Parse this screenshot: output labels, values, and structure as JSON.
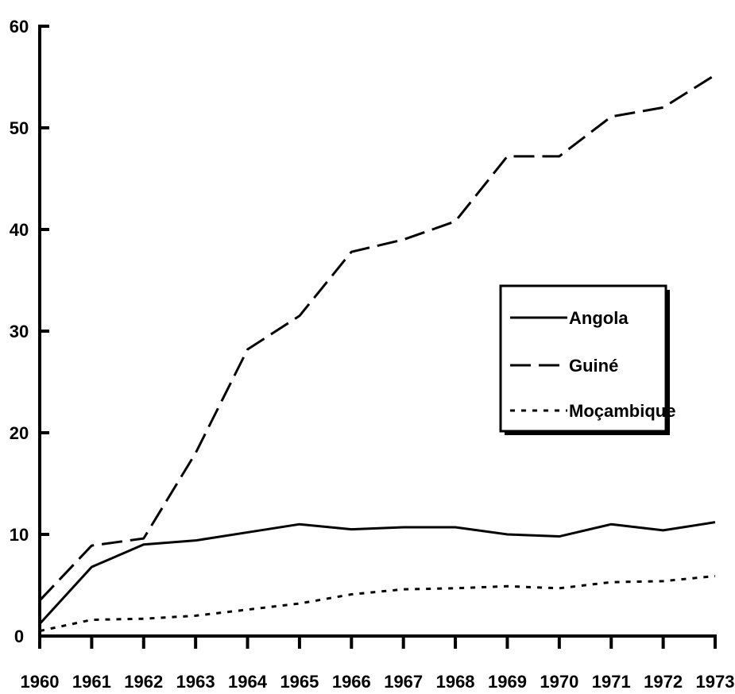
{
  "chart_data": {
    "type": "line",
    "title": "",
    "xlabel": "",
    "ylabel": "",
    "x": [
      1960,
      1961,
      1962,
      1963,
      1964,
      1965,
      1966,
      1967,
      1968,
      1969,
      1970,
      1971,
      1972,
      1973
    ],
    "x_tick_labels": [
      "1960",
      "1961",
      "1962",
      "1963",
      "1964",
      "1965",
      "1966",
      "1967",
      "1968",
      "1969",
      "1970",
      "1971",
      "1972",
      "1973"
    ],
    "ylim": [
      0,
      60
    ],
    "y_ticks": [
      0,
      10,
      20,
      30,
      40,
      50,
      60
    ],
    "y_tick_labels": [
      "0",
      "10",
      "20",
      "30",
      "40",
      "50",
      "60"
    ],
    "grid": false,
    "legend_position": "right",
    "series": [
      {
        "name": "Angola",
        "style": "solid",
        "color": "#000000",
        "values": [
          1.2,
          6.8,
          9.0,
          9.4,
          10.2,
          11.0,
          10.5,
          10.7,
          10.7,
          10.0,
          9.8,
          11.0,
          10.4,
          11.2
        ]
      },
      {
        "name": "Guiné",
        "style": "dashed",
        "color": "#000000",
        "values": [
          3.5,
          8.9,
          9.6,
          18.0,
          28.2,
          31.5,
          37.8,
          39.0,
          40.8,
          47.2,
          47.2,
          51.1,
          52.0,
          55.2
        ]
      },
      {
        "name": "Moçambique",
        "style": "dotted",
        "color": "#000000",
        "values": [
          0.5,
          1.6,
          1.7,
          2.0,
          2.6,
          3.2,
          4.1,
          4.6,
          4.7,
          4.9,
          4.7,
          5.3,
          5.4,
          5.9
        ]
      }
    ]
  }
}
